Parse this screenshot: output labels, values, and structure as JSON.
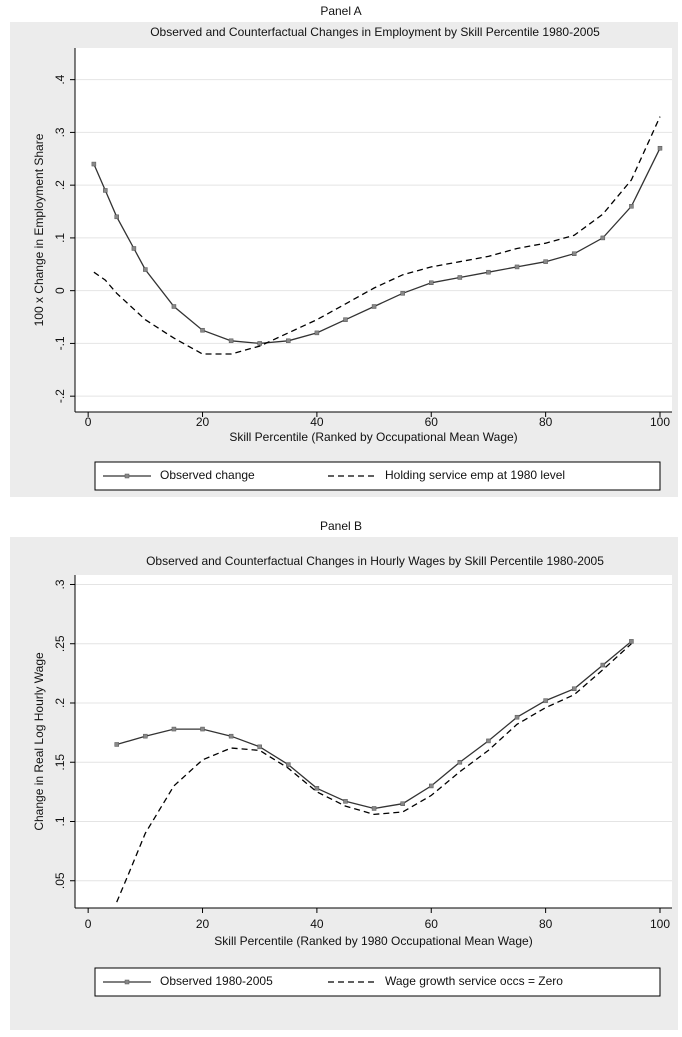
{
  "chart_data": [
    {
      "type": "line",
      "panel": "Panel A",
      "title": "Observed and Counterfactual Changes in Employment by Skill Percentile 1980-2005",
      "x_label": "Skill Percentile (Ranked by Occupational Mean Wage)",
      "y_label": "100 x Change in Employment Share",
      "xlim": [
        -2.3,
        102.1
      ],
      "xticks": [
        0,
        20,
        40,
        60,
        80,
        100
      ],
      "ylim": [
        -0.23,
        0.46
      ],
      "yticks": [
        {
          "value": -0.2,
          "label": "-.2"
        },
        {
          "value": -0.1,
          "label": "-.1"
        },
        0,
        {
          "value": 0.1,
          "label": ".1"
        },
        {
          "value": 0.2,
          "label": ".2"
        },
        {
          "value": 0.3,
          "label": ".3"
        },
        {
          "value": 0.4,
          "label": ".4"
        }
      ],
      "grid": true,
      "series": [
        {
          "name": "Observed change",
          "color": "#333333",
          "markers": true,
          "dashed": false,
          "x": [
            1,
            3,
            5,
            8,
            10,
            15,
            20,
            25,
            30,
            35,
            40,
            45,
            50,
            55,
            60,
            65,
            70,
            75,
            80,
            85,
            90,
            95,
            100
          ],
          "values": [
            0.24,
            0.19,
            0.14,
            0.08,
            0.04,
            -0.03,
            -0.075,
            -0.095,
            -0.1,
            -0.095,
            -0.08,
            -0.055,
            -0.03,
            -0.005,
            0.015,
            0.025,
            0.035,
            0.045,
            0.055,
            0.07,
            0.1,
            0.16,
            0.27
          ]
        },
        {
          "name": "Holding service emp at 1980 level",
          "color": "#000000",
          "markers": false,
          "dashed": true,
          "x": [
            1,
            3,
            5,
            10,
            15,
            20,
            25,
            30,
            35,
            40,
            45,
            50,
            55,
            60,
            65,
            70,
            75,
            80,
            85,
            90,
            95,
            100
          ],
          "values": [
            0.035,
            0.02,
            -0.005,
            -0.055,
            -0.09,
            -0.12,
            -0.12,
            -0.105,
            -0.08,
            -0.055,
            -0.025,
            0.005,
            0.03,
            0.045,
            0.055,
            0.065,
            0.08,
            0.09,
            0.105,
            0.145,
            0.21,
            0.33
          ]
        }
      ]
    },
    {
      "type": "line",
      "panel": "Panel B",
      "title": "Observed and Counterfactual Changes in Hourly Wages by Skill Percentile 1980-2005",
      "x_label": "Skill Percentile (Ranked by 1980 Occupational Mean Wage)",
      "y_label": "Change in Real Log Hourly Wage",
      "xlim": [
        -2.3,
        102.1
      ],
      "xticks": [
        0,
        20,
        40,
        60,
        80,
        100
      ],
      "ylim": [
        0.027,
        0.308
      ],
      "yticks": [
        {
          "value": 0.05,
          "label": ".05"
        },
        {
          "value": 0.1,
          "label": ".1"
        },
        {
          "value": 0.15,
          "label": ".15"
        },
        {
          "value": 0.2,
          "label": ".2"
        },
        {
          "value": 0.25,
          "label": ".25"
        },
        {
          "value": 0.3,
          "label": ".3"
        }
      ],
      "grid": true,
      "series": [
        {
          "name": "Observed 1980-2005",
          "color": "#333333",
          "markers": true,
          "dashed": false,
          "x": [
            5,
            10,
            15,
            20,
            25,
            30,
            35,
            40,
            45,
            50,
            55,
            60,
            65,
            70,
            75,
            80,
            85,
            90,
            95
          ],
          "values": [
            0.165,
            0.172,
            0.178,
            0.178,
            0.172,
            0.163,
            0.148,
            0.128,
            0.117,
            0.111,
            0.115,
            0.13,
            0.15,
            0.168,
            0.188,
            0.202,
            0.212,
            0.232,
            0.252
          ]
        },
        {
          "name": "Wage growth service occs = Zero",
          "color": "#000000",
          "markers": false,
          "dashed": true,
          "x": [
            5,
            7,
            10,
            15,
            20,
            25,
            30,
            35,
            40,
            45,
            50,
            55,
            60,
            65,
            70,
            75,
            80,
            85,
            90,
            95
          ],
          "values": [
            0.032,
            0.055,
            0.09,
            0.13,
            0.152,
            0.162,
            0.16,
            0.145,
            0.125,
            0.113,
            0.106,
            0.108,
            0.122,
            0.142,
            0.16,
            0.182,
            0.196,
            0.207,
            0.228,
            0.25
          ]
        }
      ]
    }
  ]
}
